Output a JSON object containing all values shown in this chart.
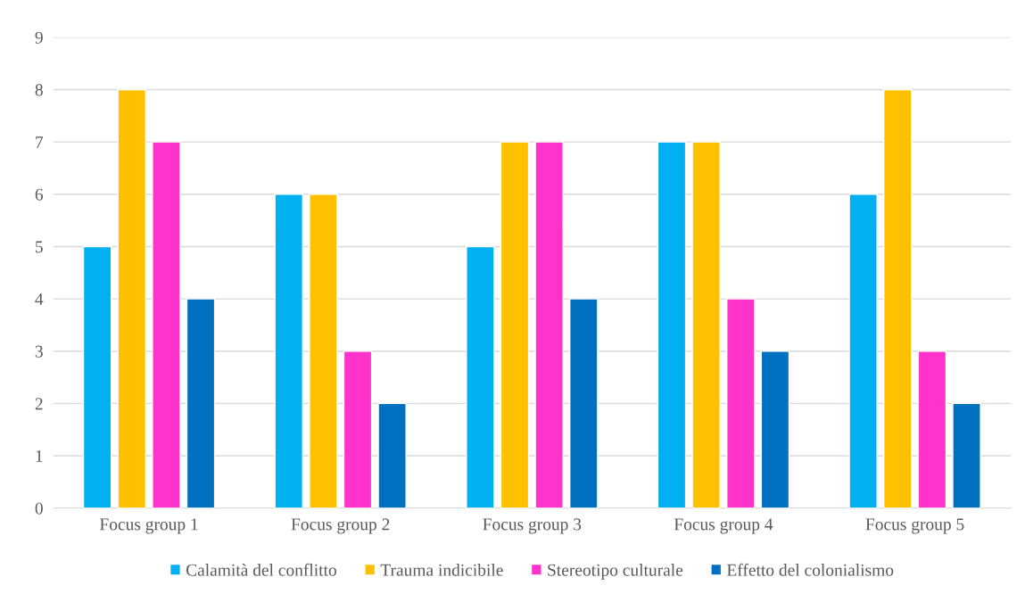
{
  "chart_data": {
    "type": "bar",
    "categories": [
      "Focus group 1",
      "Focus group 2",
      "Focus group 3",
      "Focus group 4",
      "Focus group 5"
    ],
    "series": [
      {
        "name": "Calamità del conflitto",
        "color": "#00b0f0",
        "values": [
          5,
          6,
          5,
          7,
          6
        ]
      },
      {
        "name": "Trauma indicibile",
        "color": "#ffc000",
        "values": [
          8,
          6,
          7,
          7,
          8
        ]
      },
      {
        "name": "Stereotipo culturale",
        "color": "#ff33cc",
        "values": [
          7,
          3,
          7,
          4,
          3
        ]
      },
      {
        "name": "Effetto del colonialismo",
        "color": "#0070c0",
        "values": [
          4,
          2,
          4,
          3,
          2
        ]
      }
    ],
    "ylim": [
      0,
      9
    ],
    "yticks": [
      0,
      1,
      2,
      3,
      4,
      5,
      6,
      7,
      8,
      9
    ],
    "grid": "y",
    "legend": "bottom"
  }
}
